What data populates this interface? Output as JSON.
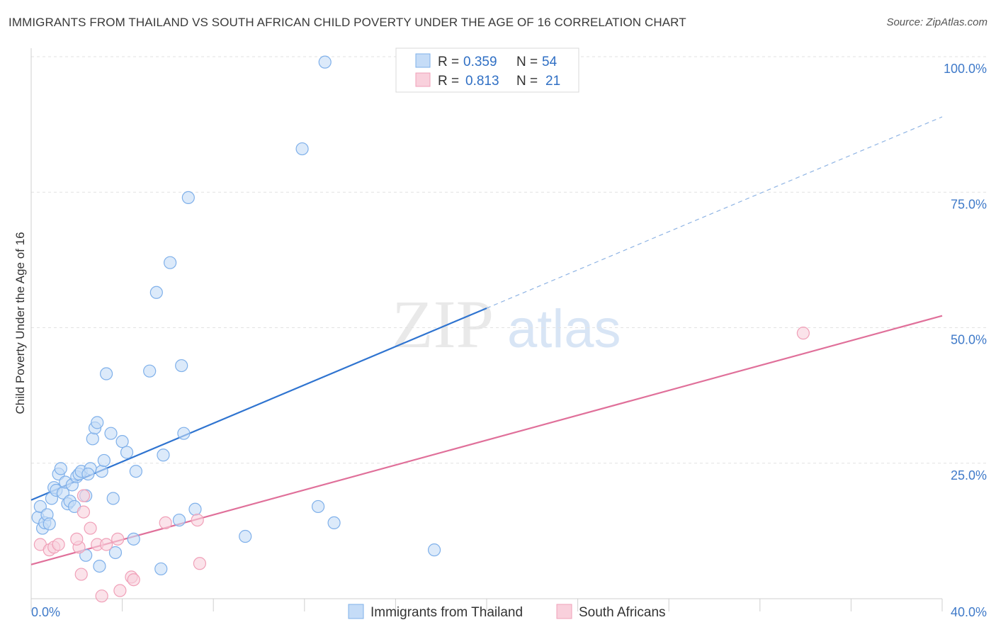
{
  "chart_data": {
    "type": "scatter",
    "title": "IMMIGRANTS FROM THAILAND VS SOUTH AFRICAN CHILD POVERTY UNDER THE AGE OF 16 CORRELATION CHART",
    "source": "Source: ZipAtlas.com",
    "ylabel": "Child Poverty Under the Age of 16",
    "watermark_zip": "ZIP",
    "watermark_atlas": "atlas",
    "xlim": [
      0,
      40
    ],
    "ylim": [
      0,
      100
    ],
    "x_tick_labels": {
      "left": "0.0%",
      "right": "40.0%"
    },
    "y_ticks": [
      {
        "value": 25,
        "label": "25.0%"
      },
      {
        "value": 50,
        "label": "50.0%"
      },
      {
        "value": 75,
        "label": "75.0%"
      },
      {
        "value": 100,
        "label": "100.0%"
      }
    ],
    "legend_box": [
      {
        "series": "Immigrants from Thailand",
        "r_label": "R =",
        "r": "0.359",
        "n_label": "N =",
        "n": "54"
      },
      {
        "series": "South Africans",
        "r_label": "R =",
        "r": "0.813",
        "n_label": "N =",
        "n": "21"
      }
    ],
    "series": [
      {
        "name": "Immigrants from Thailand",
        "color": "#7fb0ea",
        "fill": "#c5dcf7",
        "line_color": "#2f74d0",
        "trend": {
          "x0": 0,
          "y0": 18.2,
          "x1": 20,
          "y1": 53.6,
          "dash_to_x": 40,
          "dash_to_y": 88.9
        },
        "points": [
          [
            0.3,
            15
          ],
          [
            0.4,
            17
          ],
          [
            0.5,
            13
          ],
          [
            0.6,
            14
          ],
          [
            0.7,
            15.5
          ],
          [
            0.8,
            13.8
          ],
          [
            0.9,
            18.5
          ],
          [
            1.0,
            20.5
          ],
          [
            1.1,
            20
          ],
          [
            1.2,
            23
          ],
          [
            1.4,
            19.5
          ],
          [
            1.5,
            21.5
          ],
          [
            1.6,
            17.5
          ],
          [
            1.7,
            18
          ],
          [
            1.8,
            21
          ],
          [
            2.0,
            22.5
          ],
          [
            2.1,
            23
          ],
          [
            2.2,
            23.5
          ],
          [
            2.4,
            19
          ],
          [
            2.6,
            24
          ],
          [
            2.7,
            29.5
          ],
          [
            2.8,
            31.5
          ],
          [
            2.9,
            32.5
          ],
          [
            3.1,
            23.5
          ],
          [
            3.2,
            25.5
          ],
          [
            3.3,
            41.5
          ],
          [
            3.5,
            30.5
          ],
          [
            3.6,
            18.5
          ],
          [
            4.0,
            29
          ],
          [
            4.2,
            27
          ],
          [
            3.7,
            8.5
          ],
          [
            4.5,
            11
          ],
          [
            5.2,
            42
          ],
          [
            5.5,
            56.5
          ],
          [
            6.1,
            62
          ],
          [
            6.6,
            43
          ],
          [
            6.7,
            30.5
          ],
          [
            6.9,
            74
          ],
          [
            7.2,
            16.5
          ],
          [
            9.4,
            11.5
          ],
          [
            11.9,
            83
          ],
          [
            12.6,
            17
          ],
          [
            12.9,
            99
          ],
          [
            13.3,
            14
          ],
          [
            17.7,
            9
          ],
          [
            2.4,
            8
          ],
          [
            3.0,
            6
          ],
          [
            5.7,
            5.5
          ],
          [
            6.5,
            14.5
          ],
          [
            5.8,
            26.5
          ],
          [
            4.6,
            23.5
          ],
          [
            1.3,
            24
          ],
          [
            1.9,
            17
          ],
          [
            2.5,
            23
          ]
        ]
      },
      {
        "name": "South Africans",
        "color": "#f0a0b8",
        "fill": "#f9d0dc",
        "line_color": "#e0709a",
        "trend": {
          "x0": 0,
          "y0": 6.3,
          "x1": 40,
          "y1": 52.2
        },
        "points": [
          [
            0.4,
            10
          ],
          [
            0.8,
            9
          ],
          [
            1.0,
            9.5
          ],
          [
            1.2,
            10
          ],
          [
            2.1,
            9.5
          ],
          [
            2.2,
            4.5
          ],
          [
            2.3,
            16
          ],
          [
            2.3,
            19
          ],
          [
            2.6,
            13
          ],
          [
            2.9,
            10
          ],
          [
            3.3,
            10
          ],
          [
            3.1,
            0.5
          ],
          [
            3.8,
            11
          ],
          [
            3.9,
            1.5
          ],
          [
            4.4,
            4
          ],
          [
            4.5,
            3.5
          ],
          [
            5.9,
            14
          ],
          [
            7.3,
            14.5
          ],
          [
            7.4,
            6.5
          ],
          [
            33.9,
            49
          ],
          [
            2.0,
            11
          ]
        ]
      }
    ]
  }
}
